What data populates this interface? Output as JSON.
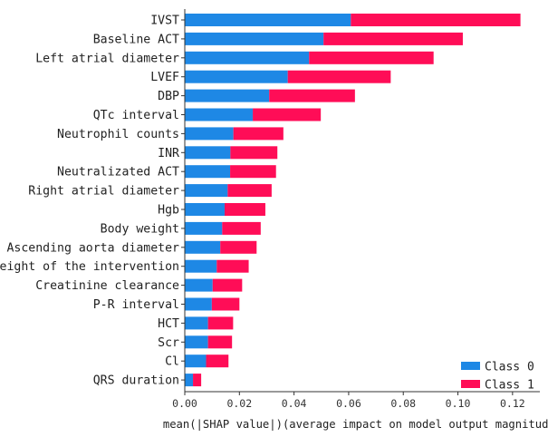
{
  "chart_data": {
    "type": "bar",
    "orientation": "horizontal",
    "stacked": true,
    "title": "",
    "xlabel": "mean(|SHAP value|)(average impact on model output magnitude)",
    "ylabel": "",
    "xlim": [
      0.0,
      0.13
    ],
    "xticks": [
      "0.00",
      "0.02",
      "0.04",
      "0.06",
      "0.08",
      "0.10",
      "0.12"
    ],
    "xtick_values": [
      0.0,
      0.02,
      0.04,
      0.06,
      0.08,
      0.1,
      0.12
    ],
    "grid": false,
    "legend_position": "bottom-right",
    "categories": [
      "IVST",
      "Baseline ACT",
      "Left atrial diameter",
      "LVEF",
      "DBP",
      "QTc interval",
      "Neutrophil counts",
      "INR",
      "Neutralizated ACT",
      "Right atrial diameter",
      "Hgb",
      "Body weight",
      "Ascending aorta diameter",
      "Weight of the intervention",
      "Creatinine clearance",
      "P-R interval",
      "HCT",
      "Scr",
      "Cl",
      "QRS duration"
    ],
    "series": [
      {
        "name": "Class 0",
        "color": "#1E88E5",
        "values": [
          0.0608,
          0.0508,
          0.0455,
          0.0377,
          0.0309,
          0.0249,
          0.0178,
          0.0167,
          0.0166,
          0.0157,
          0.0146,
          0.0137,
          0.013,
          0.0117,
          0.0102,
          0.0099,
          0.0085,
          0.0085,
          0.0078,
          0.003
        ]
      },
      {
        "name": "Class 1",
        "color": "#FF0D57",
        "values": [
          0.0621,
          0.051,
          0.0456,
          0.0377,
          0.0314,
          0.0249,
          0.0183,
          0.0172,
          0.0168,
          0.0161,
          0.0149,
          0.0141,
          0.0133,
          0.0117,
          0.0108,
          0.0101,
          0.0092,
          0.0088,
          0.0082,
          0.003
        ]
      }
    ]
  }
}
